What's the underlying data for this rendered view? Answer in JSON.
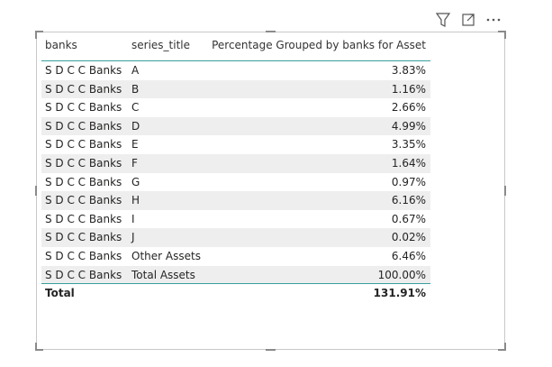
{
  "table": {
    "columns": [
      "banks",
      "series_title",
      "Percentage Grouped by banks for Asset"
    ],
    "rows": [
      [
        "S D C C Banks",
        "A",
        "3.83%"
      ],
      [
        "S D C C Banks",
        "B",
        "1.16%"
      ],
      [
        "S D C C Banks",
        "C",
        "2.66%"
      ],
      [
        "S D C C Banks",
        "D",
        "4.99%"
      ],
      [
        "S D C C Banks",
        "E",
        "3.35%"
      ],
      [
        "S D C C Banks",
        "F",
        "1.64%"
      ],
      [
        "S D C C Banks",
        "G",
        "0.97%"
      ],
      [
        "S D C C Banks",
        "H",
        "6.16%"
      ],
      [
        "S D C C Banks",
        "I",
        "0.67%"
      ],
      [
        "S D C C Banks",
        "J",
        "0.02%"
      ],
      [
        "S D C C Banks",
        "Other Assets",
        "6.46%"
      ],
      [
        "S D C C Banks",
        "Total Assets",
        "100.00%"
      ]
    ],
    "total": [
      "Total",
      "131.91%"
    ]
  }
}
